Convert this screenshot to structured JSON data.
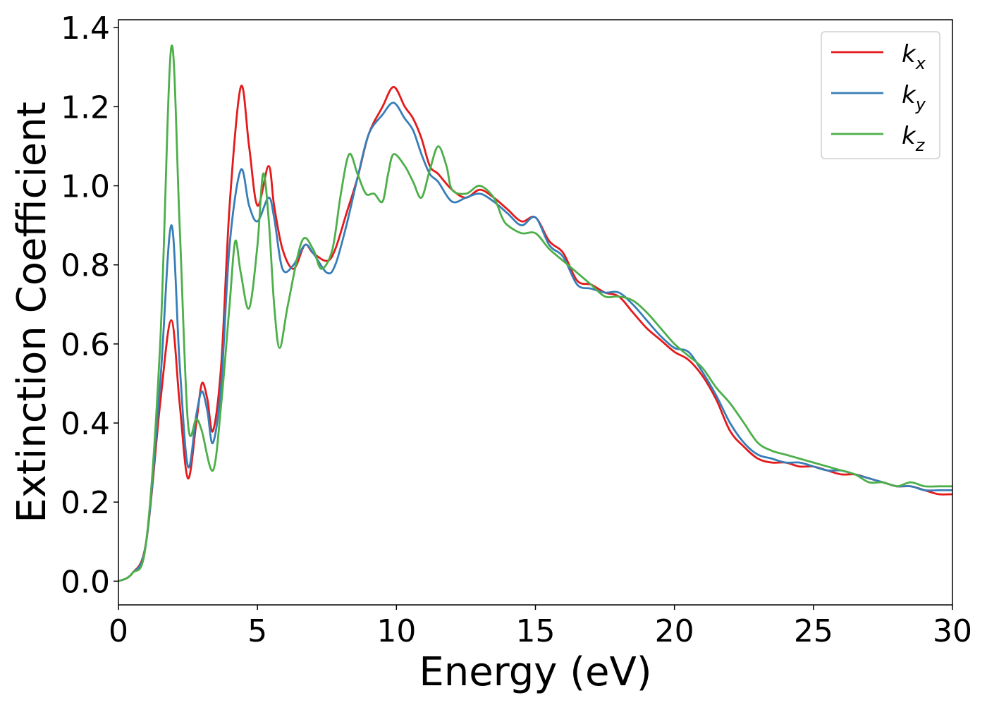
{
  "chart_data": {
    "type": "line",
    "xlabel": "Energy (eV)",
    "ylabel": "Extinction Coefficient",
    "xlim": [
      0,
      30
    ],
    "ylim": [
      -0.06,
      1.42
    ],
    "xticks": [
      0,
      5,
      10,
      15,
      20,
      25,
      30
    ],
    "yticks": [
      0.0,
      0.2,
      0.4,
      0.6,
      0.8,
      1.0,
      1.2,
      1.4
    ],
    "ytick_labels": [
      "0.0",
      "0.2",
      "0.4",
      "0.6",
      "0.8",
      "1.0",
      "1.2",
      "1.4"
    ],
    "grid": false,
    "legend_position": "top-right",
    "series": [
      {
        "name": "k",
        "subscript": "x",
        "color": "#e41a1c",
        "points": [
          [
            0,
            0
          ],
          [
            0.5,
            0.02
          ],
          [
            1.0,
            0.1
          ],
          [
            1.5,
            0.45
          ],
          [
            1.9,
            0.66
          ],
          [
            2.2,
            0.45
          ],
          [
            2.5,
            0.26
          ],
          [
            2.8,
            0.4
          ],
          [
            3.0,
            0.5
          ],
          [
            3.2,
            0.46
          ],
          [
            3.4,
            0.38
          ],
          [
            3.7,
            0.55
          ],
          [
            4.0,
            0.95
          ],
          [
            4.4,
            1.25
          ],
          [
            4.7,
            1.1
          ],
          [
            5.0,
            0.95
          ],
          [
            5.4,
            1.05
          ],
          [
            5.6,
            0.95
          ],
          [
            5.9,
            0.84
          ],
          [
            6.3,
            0.79
          ],
          [
            6.7,
            0.85
          ],
          [
            7.0,
            0.83
          ],
          [
            7.5,
            0.81
          ],
          [
            7.8,
            0.84
          ],
          [
            8.2,
            0.93
          ],
          [
            8.6,
            1.02
          ],
          [
            9.0,
            1.13
          ],
          [
            9.5,
            1.2
          ],
          [
            9.9,
            1.25
          ],
          [
            10.3,
            1.2
          ],
          [
            10.6,
            1.17
          ],
          [
            10.9,
            1.12
          ],
          [
            11.2,
            1.05
          ],
          [
            11.5,
            1.03
          ],
          [
            12.0,
            0.99
          ],
          [
            12.5,
            0.97
          ],
          [
            13.0,
            0.99
          ],
          [
            13.5,
            0.97
          ],
          [
            14.0,
            0.94
          ],
          [
            14.5,
            0.91
          ],
          [
            15.0,
            0.92
          ],
          [
            15.5,
            0.86
          ],
          [
            16.0,
            0.83
          ],
          [
            16.5,
            0.76
          ],
          [
            17.0,
            0.75
          ],
          [
            17.5,
            0.73
          ],
          [
            18.0,
            0.72
          ],
          [
            18.5,
            0.68
          ],
          [
            19.0,
            0.64
          ],
          [
            19.5,
            0.61
          ],
          [
            20.0,
            0.58
          ],
          [
            20.5,
            0.56
          ],
          [
            21.0,
            0.52
          ],
          [
            21.5,
            0.46
          ],
          [
            22.0,
            0.38
          ],
          [
            22.5,
            0.34
          ],
          [
            23.0,
            0.31
          ],
          [
            23.5,
            0.3
          ],
          [
            24.0,
            0.3
          ],
          [
            24.5,
            0.29
          ],
          [
            25.0,
            0.29
          ],
          [
            25.5,
            0.28
          ],
          [
            26.0,
            0.27
          ],
          [
            26.5,
            0.27
          ],
          [
            27.0,
            0.26
          ],
          [
            27.5,
            0.25
          ],
          [
            28.0,
            0.24
          ],
          [
            28.5,
            0.24
          ],
          [
            29.0,
            0.23
          ],
          [
            29.5,
            0.22
          ],
          [
            30.0,
            0.22
          ]
        ]
      },
      {
        "name": "k",
        "subscript": "y",
        "color": "#377eb8",
        "points": [
          [
            0,
            0
          ],
          [
            0.5,
            0.02
          ],
          [
            1.0,
            0.1
          ],
          [
            1.5,
            0.5
          ],
          [
            1.9,
            0.9
          ],
          [
            2.2,
            0.55
          ],
          [
            2.5,
            0.29
          ],
          [
            2.8,
            0.42
          ],
          [
            3.0,
            0.48
          ],
          [
            3.2,
            0.43
          ],
          [
            3.4,
            0.35
          ],
          [
            3.7,
            0.5
          ],
          [
            4.0,
            0.85
          ],
          [
            4.4,
            1.04
          ],
          [
            4.7,
            0.95
          ],
          [
            5.0,
            0.91
          ],
          [
            5.4,
            0.97
          ],
          [
            5.6,
            0.92
          ],
          [
            5.9,
            0.79
          ],
          [
            6.3,
            0.8
          ],
          [
            6.7,
            0.85
          ],
          [
            7.0,
            0.83
          ],
          [
            7.5,
            0.78
          ],
          [
            7.8,
            0.8
          ],
          [
            8.2,
            0.9
          ],
          [
            8.6,
            1.02
          ],
          [
            9.0,
            1.13
          ],
          [
            9.5,
            1.18
          ],
          [
            9.9,
            1.21
          ],
          [
            10.3,
            1.17
          ],
          [
            10.6,
            1.14
          ],
          [
            10.9,
            1.08
          ],
          [
            11.2,
            1.03
          ],
          [
            11.5,
            1.01
          ],
          [
            12.0,
            0.96
          ],
          [
            12.5,
            0.97
          ],
          [
            13.0,
            0.98
          ],
          [
            13.5,
            0.96
          ],
          [
            14.0,
            0.93
          ],
          [
            14.5,
            0.9
          ],
          [
            15.0,
            0.92
          ],
          [
            15.5,
            0.85
          ],
          [
            16.0,
            0.82
          ],
          [
            16.5,
            0.75
          ],
          [
            17.0,
            0.74
          ],
          [
            17.5,
            0.73
          ],
          [
            18.0,
            0.73
          ],
          [
            18.5,
            0.7
          ],
          [
            19.0,
            0.66
          ],
          [
            19.5,
            0.62
          ],
          [
            20.0,
            0.59
          ],
          [
            20.5,
            0.58
          ],
          [
            21.0,
            0.53
          ],
          [
            21.5,
            0.47
          ],
          [
            22.0,
            0.4
          ],
          [
            22.5,
            0.35
          ],
          [
            23.0,
            0.32
          ],
          [
            23.5,
            0.31
          ],
          [
            24.0,
            0.3
          ],
          [
            24.5,
            0.3
          ],
          [
            25.0,
            0.29
          ],
          [
            25.5,
            0.28
          ],
          [
            26.0,
            0.28
          ],
          [
            26.5,
            0.27
          ],
          [
            27.0,
            0.26
          ],
          [
            27.5,
            0.25
          ],
          [
            28.0,
            0.24
          ],
          [
            28.5,
            0.24
          ],
          [
            29.0,
            0.23
          ],
          [
            29.5,
            0.23
          ],
          [
            30.0,
            0.23
          ]
        ]
      },
      {
        "name": "k",
        "subscript": "z",
        "color": "#4daf4a",
        "points": [
          [
            0,
            0
          ],
          [
            0.5,
            0.02
          ],
          [
            1.0,
            0.1
          ],
          [
            1.5,
            0.6
          ],
          [
            1.9,
            1.35
          ],
          [
            2.2,
            0.9
          ],
          [
            2.5,
            0.4
          ],
          [
            2.8,
            0.41
          ],
          [
            3.0,
            0.38
          ],
          [
            3.4,
            0.28
          ],
          [
            3.7,
            0.45
          ],
          [
            4.0,
            0.7
          ],
          [
            4.2,
            0.86
          ],
          [
            4.4,
            0.78
          ],
          [
            4.7,
            0.69
          ],
          [
            5.0,
            0.85
          ],
          [
            5.2,
            1.03
          ],
          [
            5.4,
            0.92
          ],
          [
            5.6,
            0.7
          ],
          [
            5.8,
            0.59
          ],
          [
            6.1,
            0.7
          ],
          [
            6.6,
            0.86
          ],
          [
            7.0,
            0.84
          ],
          [
            7.3,
            0.79
          ],
          [
            7.7,
            0.84
          ],
          [
            8.0,
            0.98
          ],
          [
            8.3,
            1.08
          ],
          [
            8.6,
            1.03
          ],
          [
            8.9,
            0.98
          ],
          [
            9.2,
            0.98
          ],
          [
            9.5,
            0.96
          ],
          [
            9.7,
            1.03
          ],
          [
            9.9,
            1.08
          ],
          [
            10.3,
            1.05
          ],
          [
            10.6,
            1.01
          ],
          [
            10.9,
            0.97
          ],
          [
            11.2,
            1.04
          ],
          [
            11.5,
            1.1
          ],
          [
            11.8,
            1.05
          ],
          [
            12.0,
            0.99
          ],
          [
            12.5,
            0.98
          ],
          [
            13.0,
            1.0
          ],
          [
            13.5,
            0.97
          ],
          [
            13.8,
            0.92
          ],
          [
            14.0,
            0.9
          ],
          [
            14.5,
            0.88
          ],
          [
            15.0,
            0.88
          ],
          [
            15.5,
            0.84
          ],
          [
            16.0,
            0.81
          ],
          [
            16.5,
            0.78
          ],
          [
            17.0,
            0.75
          ],
          [
            17.5,
            0.72
          ],
          [
            18.0,
            0.72
          ],
          [
            18.5,
            0.71
          ],
          [
            19.0,
            0.68
          ],
          [
            19.5,
            0.64
          ],
          [
            20.0,
            0.6
          ],
          [
            20.5,
            0.57
          ],
          [
            21.0,
            0.54
          ],
          [
            21.5,
            0.49
          ],
          [
            22.0,
            0.45
          ],
          [
            22.5,
            0.4
          ],
          [
            23.0,
            0.35
          ],
          [
            23.5,
            0.33
          ],
          [
            24.0,
            0.32
          ],
          [
            24.5,
            0.31
          ],
          [
            25.0,
            0.3
          ],
          [
            25.5,
            0.29
          ],
          [
            26.0,
            0.28
          ],
          [
            26.5,
            0.27
          ],
          [
            27.0,
            0.25
          ],
          [
            27.5,
            0.25
          ],
          [
            28.0,
            0.24
          ],
          [
            28.5,
            0.25
          ],
          [
            29.0,
            0.24
          ],
          [
            29.5,
            0.24
          ],
          [
            30.0,
            0.24
          ]
        ]
      }
    ]
  }
}
